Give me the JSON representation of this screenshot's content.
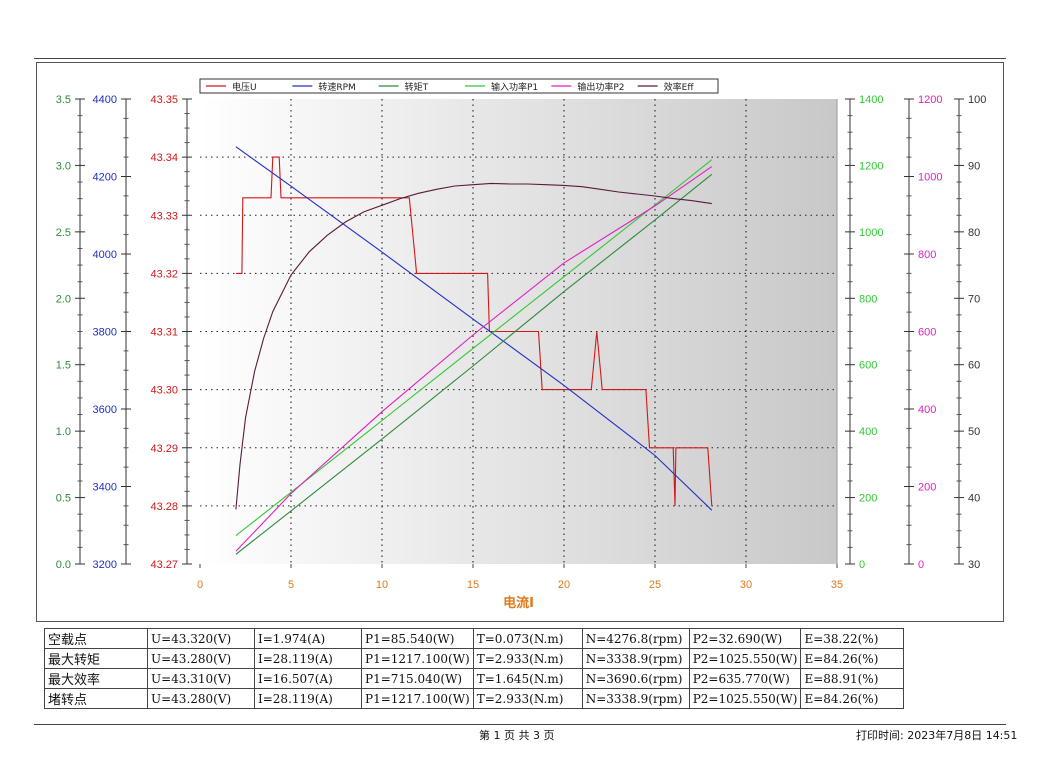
{
  "chart_data": {
    "type": "line",
    "xlabel": "电流I",
    "x_ticks": [
      "0",
      "5",
      "10",
      "15",
      "20",
      "25",
      "30",
      "35"
    ],
    "xlim": [
      0,
      35
    ],
    "legend_position": "top",
    "grid": true,
    "axes": [
      {
        "id": "torque_axis",
        "side": "left",
        "color": "#2e8b3c",
        "lim": [
          0,
          3.5
        ],
        "ticks": [
          "0.0",
          "0.5",
          "1.0",
          "1.5",
          "2.0",
          "2.5",
          "3.0",
          "3.5"
        ]
      },
      {
        "id": "rpm_axis",
        "side": "left",
        "color": "#2030c0",
        "lim": [
          3200,
          4400
        ],
        "ticks": [
          "3200",
          "3400",
          "3600",
          "3800",
          "4000",
          "4200",
          "4400"
        ]
      },
      {
        "id": "voltage_axis",
        "side": "left",
        "color": "#d01818",
        "lim": [
          43.27,
          43.35
        ],
        "ticks": [
          "43.27",
          "43.28",
          "43.29",
          "43.30",
          "43.31",
          "43.32",
          "43.33",
          "43.34",
          "43.35"
        ]
      },
      {
        "id": "p1_axis",
        "side": "right",
        "color": "#32c832",
        "lim": [
          0,
          1400
        ],
        "ticks": [
          "0",
          "200",
          "400",
          "600",
          "800",
          "1000",
          "1200",
          "1400"
        ]
      },
      {
        "id": "p2_axis",
        "side": "right",
        "color": "#e020c0",
        "lim": [
          0,
          1200
        ],
        "ticks": [
          "0",
          "200",
          "400",
          "600",
          "800",
          "1000",
          "1200"
        ]
      },
      {
        "id": "eff_axis",
        "side": "right",
        "color": "#333333",
        "lim": [
          30,
          100
        ],
        "ticks": [
          "30",
          "40",
          "50",
          "60",
          "70",
          "80",
          "90",
          "100"
        ]
      }
    ],
    "series": [
      {
        "name": "电压U",
        "axis": "voltage_axis",
        "color": "#d01818",
        "x": [
          1.974,
          2.3,
          2.35,
          2.5,
          2.6,
          3,
          3.5,
          3.9,
          4.0,
          4.2,
          4.35,
          4.45,
          4.6,
          4.7,
          5,
          5.5,
          6,
          7,
          8,
          9,
          10,
          11,
          11.5,
          11.9,
          12.0,
          12.3,
          13,
          14,
          15,
          15.5,
          15.8,
          15.9,
          16.2,
          17,
          18,
          18.6,
          18.8,
          19,
          19.5,
          20,
          21,
          21.5,
          21.8,
          22.1,
          22.4,
          22.7,
          23,
          24,
          24.5,
          24.7,
          24.8,
          25.5,
          26,
          26.1,
          26.15,
          26.4,
          27,
          27.5,
          27.9,
          28.119
        ],
        "y": [
          43.32,
          43.32,
          43.333,
          43.333,
          43.333,
          43.333,
          43.333,
          43.333,
          43.34,
          43.34,
          43.34,
          43.333,
          43.333,
          43.333,
          43.333,
          43.333,
          43.333,
          43.333,
          43.333,
          43.333,
          43.333,
          43.333,
          43.333,
          43.32,
          43.32,
          43.32,
          43.32,
          43.32,
          43.32,
          43.32,
          43.32,
          43.31,
          43.31,
          43.31,
          43.31,
          43.31,
          43.3,
          43.3,
          43.3,
          43.3,
          43.3,
          43.3,
          43.31,
          43.3,
          43.3,
          43.3,
          43.3,
          43.3,
          43.3,
          43.29,
          43.29,
          43.29,
          43.29,
          43.28,
          43.29,
          43.29,
          43.29,
          43.29,
          43.29,
          43.28
        ]
      },
      {
        "name": "转速RPM",
        "axis": "rpm_axis",
        "color": "#2030c0",
        "x": [
          1.974,
          5,
          10,
          15,
          20,
          25,
          28.119
        ],
        "y": [
          4276.8,
          4175,
          4005,
          3832,
          3661,
          3480,
          3338.9
        ]
      },
      {
        "name": "转矩T",
        "axis": "torque_axis",
        "color": "#2e8b3c",
        "x": [
          1.974,
          5,
          10,
          15,
          20,
          25,
          28.119
        ],
        "y": [
          0.073,
          0.4,
          0.94,
          1.49,
          2.05,
          2.59,
          2.933
        ]
      },
      {
        "name": "输入功率P1",
        "axis": "p1_axis",
        "color": "#32c832",
        "x": [
          1.974,
          5,
          10,
          15,
          20,
          25,
          28.119
        ],
        "y": [
          85.54,
          216,
          432,
          649,
          865,
          1081,
          1217.1
        ]
      },
      {
        "name": "输出功率P2",
        "axis": "p2_axis",
        "color": "#e020c0",
        "x": [
          1.974,
          5,
          10,
          15,
          20,
          25,
          28.119
        ],
        "y": [
          32.69,
          182,
          393,
          591,
          777,
          924,
          1025.55
        ]
      },
      {
        "name": "效率Eff",
        "axis": "eff_axis",
        "color": "#5a1a3a",
        "x": [
          1.974,
          2.2,
          2.5,
          3,
          3.5,
          4,
          5,
          6,
          7,
          8,
          9,
          10,
          11,
          12,
          13,
          14,
          15,
          16,
          17,
          18,
          19,
          20,
          21,
          22,
          23,
          24,
          25,
          26,
          27,
          28.119
        ],
        "y": [
          38.22,
          45,
          52,
          59,
          64,
          68,
          73.5,
          77,
          79.5,
          81.5,
          83,
          84,
          85,
          85.8,
          86.4,
          86.9,
          87.1,
          87.3,
          87.2,
          87.2,
          87.1,
          87.0,
          86.8,
          86.4,
          86.0,
          85.7,
          85.4,
          85.0,
          84.7,
          84.26
        ]
      }
    ]
  },
  "summary_table": {
    "rows": [
      [
        "空载点",
        "U=43.320(V)",
        "I=1.974(A)",
        "P1=85.540(W)",
        "T=0.073(N.m)",
        "N=4276.8(rpm)",
        "P2=32.690(W)",
        "E=38.22(%)"
      ],
      [
        "最大转矩",
        "U=43.280(V)",
        "I=28.119(A)",
        "P1=1217.100(W)",
        "T=2.933(N.m)",
        "N=3338.9(rpm)",
        "P2=1025.550(W)",
        "E=84.26(%)"
      ],
      [
        "最大效率",
        "U=43.310(V)",
        "I=16.507(A)",
        "P1=715.040(W)",
        "T=1.645(N.m)",
        "N=3690.6(rpm)",
        "P2=635.770(W)",
        "E=88.91(%)"
      ],
      [
        "堵转点",
        "U=43.280(V)",
        "I=28.119(A)",
        "P1=1217.100(W)",
        "T=2.933(N.m)",
        "N=3338.9(rpm)",
        "P2=1025.550(W)",
        "E=84.26(%)"
      ]
    ]
  },
  "footer": {
    "page_info": "第 1 页  共 3 页",
    "print_time": "打印时间: 2023年7月8日 14:51"
  }
}
